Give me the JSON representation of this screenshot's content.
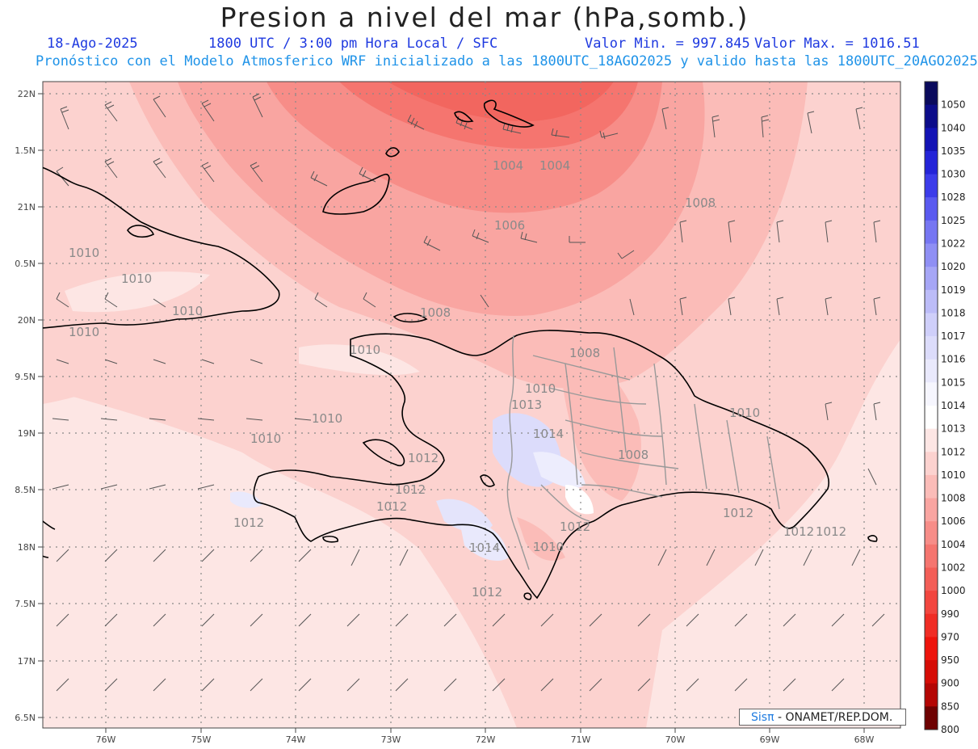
{
  "header": {
    "title": "Presion a nivel del mar (hPa,somb.)",
    "date": "18-Ago-2025",
    "time": "1800 UTC / 3:00 pm Hora Local / SFC",
    "min_value": "Valor Min. = 997.845",
    "max_value": "Valor Max. = 1016.51",
    "forecast_info": "Pronóstico con el Modelo Atmosferico WRF inicializado a las 1800UTC_18AGO2025 y valido hasta las  1800UTC_20AGO2025"
  },
  "axes": {
    "lat_labels": [
      "22N",
      "1.5N",
      "21N",
      "0.5N",
      "20N",
      "9.5N",
      "19N",
      "8.5N",
      "18N",
      "7.5N",
      "17N",
      "6.5N"
    ],
    "lon_labels": [
      "76W",
      "75W",
      "74W",
      "73W",
      "72W",
      "71W",
      "70W",
      "69W",
      "68W"
    ]
  },
  "contour_labels": [
    "1004",
    "1004",
    "1006",
    "1008",
    "1008",
    "1008",
    "1008",
    "1010",
    "1010",
    "1010",
    "1010",
    "1010",
    "1010",
    "1010",
    "1010",
    "1010",
    "1010",
    "1012",
    "1012",
    "1012",
    "1012",
    "1012",
    "1012",
    "1012",
    "1012",
    "1013",
    "1014",
    "1014",
    "1012"
  ],
  "legend": {
    "entries": [
      {
        "label": "1050",
        "color": "#0a0a5c"
      },
      {
        "label": "1040",
        "color": "#0c0c8a"
      },
      {
        "label": "1035",
        "color": "#1313b5"
      },
      {
        "label": "1030",
        "color": "#2424d8"
      },
      {
        "label": "1028",
        "color": "#3c3cea"
      },
      {
        "label": "1025",
        "color": "#5a5af0"
      },
      {
        "label": "1022",
        "color": "#7676f2"
      },
      {
        "label": "1020",
        "color": "#8f8ff4"
      },
      {
        "label": "1019",
        "color": "#a6a6f6"
      },
      {
        "label": "1018",
        "color": "#bcbcf8"
      },
      {
        "label": "1017",
        "color": "#cfcffa"
      },
      {
        "label": "1016",
        "color": "#dcdcfb"
      },
      {
        "label": "1015",
        "color": "#e9e9fc"
      },
      {
        "label": "1014",
        "color": "#f6f6fe"
      },
      {
        "label": "1013",
        "color": "#ffffff"
      },
      {
        "label": "1012",
        "color": "#fde6e4"
      },
      {
        "label": "1010",
        "color": "#fcd2cf"
      },
      {
        "label": "1008",
        "color": "#fbbcb8"
      },
      {
        "label": "1006",
        "color": "#f9a5a1"
      },
      {
        "label": "1004",
        "color": "#f78d88"
      },
      {
        "label": "1002",
        "color": "#f5756f"
      },
      {
        "label": "1000",
        "color": "#f35e57"
      },
      {
        "label": "990",
        "color": "#f2463f"
      },
      {
        "label": "970",
        "color": "#f02d25"
      },
      {
        "label": "950",
        "color": "#ee140c"
      },
      {
        "label": "900",
        "color": "#d60c06"
      },
      {
        "label": "850",
        "color": "#b40604"
      },
      {
        "label": "800",
        "color": "#6e0202"
      }
    ]
  },
  "credit": {
    "brand": "Sisπ",
    "org": " - ONAMET/REP.DOM."
  },
  "colors": {
    "p1012": "#fde6e4",
    "p1010": "#fcd2cf",
    "p1008": "#fbbcb8",
    "p1006": "#f9a5a1",
    "p1004": "#f78d88",
    "p1002": "#f5756f",
    "high": "#dcdcfb",
    "coast": "#000000",
    "border": "#999999"
  }
}
